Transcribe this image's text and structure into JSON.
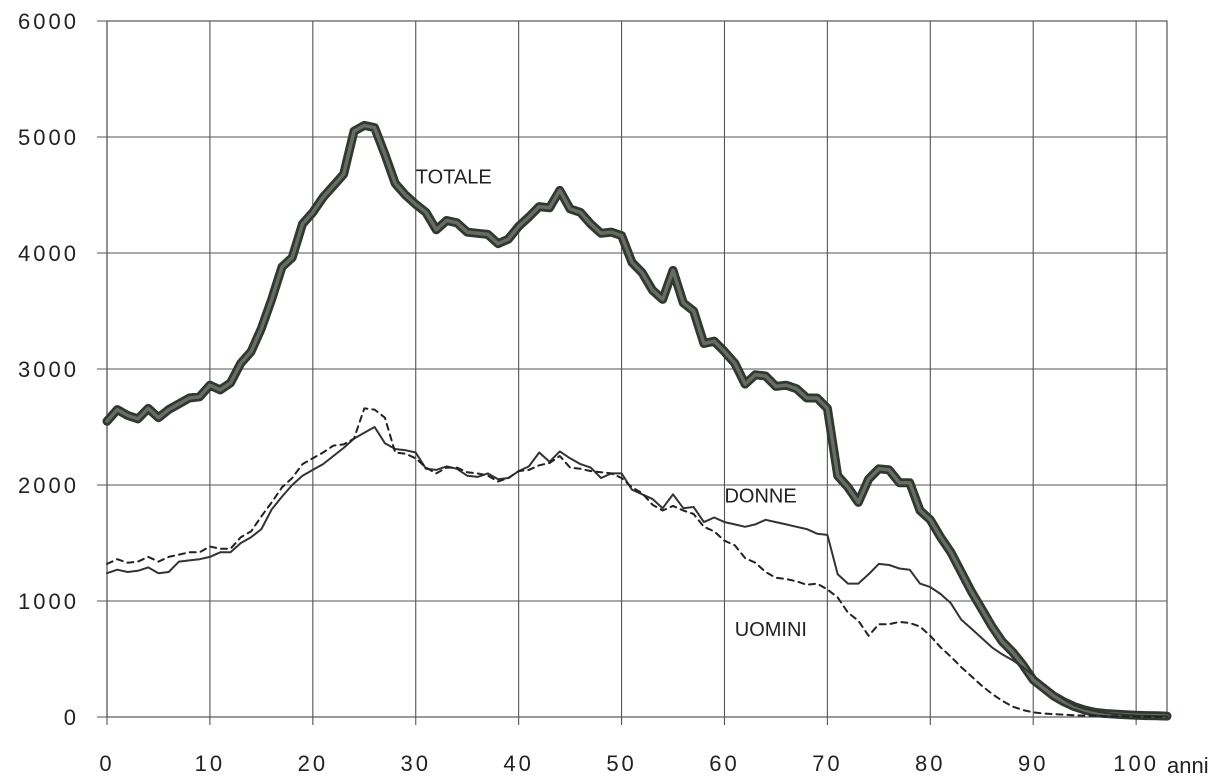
{
  "chart_data": {
    "type": "line",
    "xlabel": "anni",
    "ylabel": "",
    "xlim": [
      0,
      103
    ],
    "ylim": [
      0,
      6000
    ],
    "xticks": [
      0,
      10,
      20,
      30,
      40,
      50,
      60,
      70,
      80,
      90,
      100
    ],
    "yticks": [
      0,
      1000,
      2000,
      3000,
      4000,
      5000,
      6000
    ],
    "grid": true,
    "series": [
      {
        "name": "TOTALE",
        "style": "thick",
        "color": "#4a4a4a",
        "x": [
          0,
          1,
          2,
          3,
          4,
          5,
          6,
          7,
          8,
          9,
          10,
          11,
          12,
          13,
          14,
          15,
          16,
          17,
          18,
          19,
          20,
          21,
          22,
          23,
          24,
          25,
          26,
          27,
          28,
          29,
          30,
          31,
          32,
          33,
          34,
          35,
          36,
          37,
          38,
          39,
          40,
          41,
          42,
          43,
          44,
          45,
          46,
          47,
          48,
          49,
          50,
          51,
          52,
          53,
          54,
          55,
          56,
          57,
          58,
          59,
          60,
          61,
          62,
          63,
          64,
          65,
          66,
          67,
          68,
          69,
          70,
          71,
          72,
          73,
          74,
          75,
          76,
          77,
          78,
          79,
          80,
          81,
          82,
          83,
          84,
          85,
          86,
          87,
          88,
          89,
          90,
          91,
          92,
          93,
          94,
          95,
          96,
          97,
          98,
          99,
          100,
          101,
          102,
          103
        ],
        "values": [
          2550,
          2650,
          2600,
          2570,
          2660,
          2580,
          2650,
          2700,
          2750,
          2760,
          2860,
          2820,
          2880,
          3050,
          3150,
          3350,
          3600,
          3880,
          3960,
          4250,
          4350,
          4480,
          4580,
          4680,
          5050,
          5100,
          5080,
          4850,
          4600,
          4500,
          4420,
          4350,
          4200,
          4280,
          4260,
          4180,
          4170,
          4160,
          4080,
          4120,
          4230,
          4310,
          4400,
          4390,
          4540,
          4380,
          4350,
          4250,
          4170,
          4180,
          4150,
          3920,
          3830,
          3680,
          3600,
          3850,
          3570,
          3500,
          3220,
          3240,
          3150,
          3050,
          2870,
          2950,
          2940,
          2850,
          2860,
          2830,
          2750,
          2750,
          2660,
          2080,
          1980,
          1850,
          2050,
          2140,
          2130,
          2020,
          2020,
          1780,
          1700,
          1550,
          1420,
          1250,
          1080,
          930,
          780,
          650,
          560,
          450,
          320,
          250,
          180,
          130,
          90,
          60,
          40,
          30,
          25,
          20,
          15,
          12,
          10,
          8
        ]
      },
      {
        "name": "DONNE",
        "style": "thin",
        "color": "#333333",
        "x": [
          0,
          1,
          2,
          3,
          4,
          5,
          6,
          7,
          8,
          9,
          10,
          11,
          12,
          13,
          14,
          15,
          16,
          17,
          18,
          19,
          20,
          21,
          22,
          23,
          24,
          25,
          26,
          27,
          28,
          29,
          30,
          31,
          32,
          33,
          34,
          35,
          36,
          37,
          38,
          39,
          40,
          41,
          42,
          43,
          44,
          45,
          46,
          47,
          48,
          49,
          50,
          51,
          52,
          53,
          54,
          55,
          56,
          57,
          58,
          59,
          60,
          61,
          62,
          63,
          64,
          65,
          66,
          67,
          68,
          69,
          70,
          71,
          72,
          73,
          74,
          75,
          76,
          77,
          78,
          79,
          80,
          81,
          82,
          83,
          84,
          85,
          86,
          87,
          88,
          89,
          90,
          91,
          92,
          93,
          94,
          95,
          96,
          97,
          98,
          99,
          100,
          101,
          102,
          103
        ],
        "values": [
          1240,
          1270,
          1250,
          1260,
          1290,
          1240,
          1250,
          1340,
          1350,
          1360,
          1380,
          1420,
          1420,
          1500,
          1550,
          1620,
          1790,
          1900,
          2000,
          2080,
          2130,
          2180,
          2250,
          2320,
          2400,
          2450,
          2500,
          2360,
          2310,
          2300,
          2280,
          2140,
          2130,
          2160,
          2140,
          2080,
          2070,
          2100,
          2050,
          2060,
          2120,
          2160,
          2280,
          2200,
          2290,
          2230,
          2180,
          2150,
          2060,
          2100,
          2100,
          1960,
          1920,
          1880,
          1800,
          1920,
          1800,
          1810,
          1680,
          1720,
          1680,
          1660,
          1640,
          1660,
          1700,
          1680,
          1660,
          1640,
          1620,
          1580,
          1570,
          1230,
          1150,
          1150,
          1230,
          1320,
          1310,
          1280,
          1270,
          1150,
          1120,
          1060,
          980,
          840,
          760,
          680,
          600,
          540,
          490,
          430,
          360,
          280,
          210,
          150,
          100,
          70,
          50,
          35,
          25,
          18,
          12,
          10,
          8,
          6
        ]
      },
      {
        "name": "UOMINI",
        "style": "dashed",
        "color": "#222222",
        "x": [
          0,
          1,
          2,
          3,
          4,
          5,
          6,
          7,
          8,
          9,
          10,
          11,
          12,
          13,
          14,
          15,
          16,
          17,
          18,
          19,
          20,
          21,
          22,
          23,
          24,
          25,
          26,
          27,
          28,
          29,
          30,
          31,
          32,
          33,
          34,
          35,
          36,
          37,
          38,
          39,
          40,
          41,
          42,
          43,
          44,
          45,
          46,
          47,
          48,
          49,
          50,
          51,
          52,
          53,
          54,
          55,
          56,
          57,
          58,
          59,
          60,
          61,
          62,
          63,
          64,
          65,
          66,
          67,
          68,
          69,
          70,
          71,
          72,
          73,
          74,
          75,
          76,
          77,
          78,
          79,
          80,
          81,
          82,
          83,
          84,
          85,
          86,
          87,
          88,
          89,
          90,
          91,
          92,
          93,
          94,
          95,
          96,
          97,
          98,
          99,
          100,
          101,
          102,
          103
        ],
        "values": [
          1320,
          1360,
          1330,
          1340,
          1380,
          1340,
          1380,
          1400,
          1420,
          1420,
          1470,
          1450,
          1450,
          1550,
          1600,
          1730,
          1850,
          1980,
          2060,
          2180,
          2230,
          2280,
          2340,
          2350,
          2400,
          2660,
          2650,
          2580,
          2280,
          2270,
          2230,
          2150,
          2100,
          2150,
          2150,
          2110,
          2100,
          2080,
          2030,
          2060,
          2120,
          2130,
          2170,
          2190,
          2250,
          2150,
          2140,
          2120,
          2110,
          2100,
          2060,
          1980,
          1930,
          1830,
          1780,
          1820,
          1780,
          1750,
          1640,
          1600,
          1520,
          1480,
          1370,
          1330,
          1250,
          1200,
          1190,
          1170,
          1140,
          1150,
          1100,
          1030,
          900,
          830,
          700,
          800,
          800,
          820,
          810,
          780,
          700,
          600,
          520,
          430,
          350,
          270,
          200,
          140,
          90,
          60,
          40,
          30,
          25,
          20,
          15,
          12,
          10,
          8,
          6,
          5,
          4,
          3,
          2,
          2
        ]
      }
    ],
    "annotations": [
      {
        "text": "TOTALE",
        "x": 30,
        "y": 4600
      },
      {
        "text": "DONNE",
        "x": 60,
        "y": 1850
      },
      {
        "text": "UOMINI",
        "x": 61,
        "y": 700
      }
    ]
  }
}
